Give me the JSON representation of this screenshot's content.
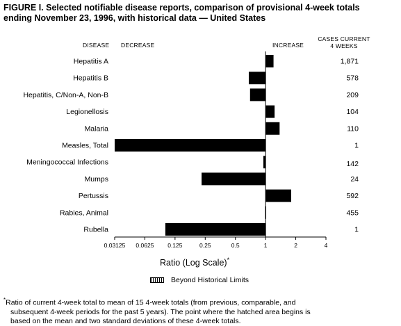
{
  "title_line1": "FIGURE I. Selected notifiable disease reports, comparison of provisional 4-week totals",
  "title_line2": "ending November 23, 1996, with historical data — United States",
  "headers": {
    "disease": "DISEASE",
    "decrease": "DECREASE",
    "increase": "INCREASE",
    "cases_line1": "CASES CURRENT",
    "cases_line2": "4 WEEKS"
  },
  "x_axis_label": "Ratio (Log Scale)",
  "x_axis_label_mark": "*",
  "legend_label": "Beyond Historical Limits",
  "footnote_mark": "*",
  "footnote_line1": "Ratio of current 4-week total to mean of 15 4-week totals (from previous, comparable, and",
  "footnote_line2": "subsequent 4-week periods for the past 5 years). The point where the hatched area begins is",
  "footnote_line3": "based on the mean and two standard deviations of these 4-week totals.",
  "chart_data": {
    "type": "bar",
    "orientation": "horizontal",
    "scale": "log2",
    "baseline": 1,
    "categories": [
      "Hepatitis A",
      "Hepatitis B",
      "Hepatitis, C/Non-A, Non-B",
      "Legionellosis",
      "Malaria",
      "Measles, Total",
      "Meningococcal Infections",
      "Mumps",
      "Pertussis",
      "Rabies, Animal",
      "Rubella"
    ],
    "values": [
      1.2,
      0.68,
      0.7,
      1.23,
      1.38,
      0.03125,
      0.95,
      0.23,
      1.8,
      0.99,
      0.1
    ],
    "cases": [
      "1,871",
      "578",
      "209",
      "104",
      "110",
      "1",
      "142",
      "24",
      "592",
      "455",
      "1"
    ],
    "tick_labels": [
      "0.03125",
      "0.0625",
      "0.125",
      "0.25",
      "0.5",
      "1",
      "2",
      "4"
    ],
    "tick_values": [
      0.03125,
      0.0625,
      0.125,
      0.25,
      0.5,
      1,
      2,
      4
    ],
    "xlim": [
      0.03125,
      4
    ],
    "xlabel": "Ratio (Log Scale)*",
    "legend": "Beyond Historical Limits"
  }
}
